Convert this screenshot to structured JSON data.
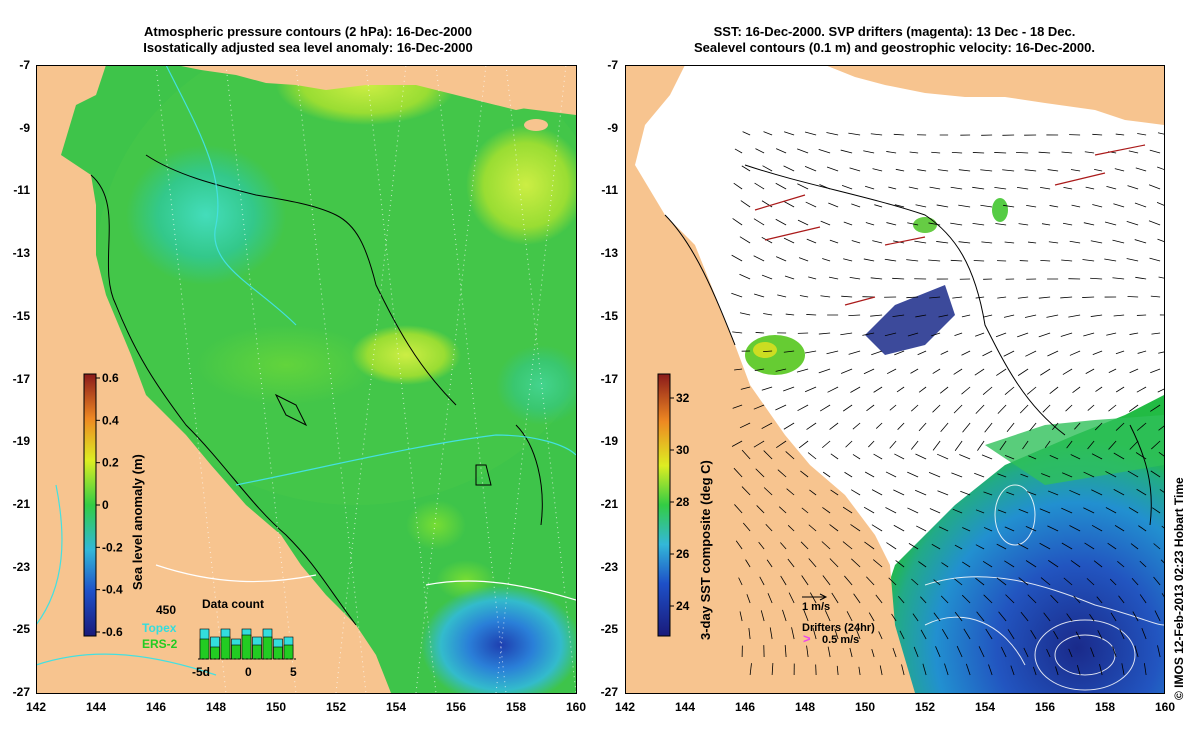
{
  "left_panel": {
    "title_line1": "Atmospheric pressure contours (2 hPa): 16-Dec-2000",
    "title_line2": "Isostatically adjusted sea level anomaly: 16-Dec-2000",
    "colorbar": {
      "label": "Sea level anomaly (m)",
      "ticks": [
        "0.6",
        "0.4",
        "0.2",
        "0",
        "-0.2",
        "-0.4",
        "-0.6"
      ]
    },
    "inset": {
      "title": "Data count",
      "max_label": "450",
      "x_ticks": [
        "-5d",
        "0",
        "5"
      ],
      "series": [
        {
          "name": "Topex",
          "color": "#33dddd"
        },
        {
          "name": "ERS-2",
          "color": "#22cc22"
        }
      ]
    }
  },
  "right_panel": {
    "title_line1": "SST: 16-Dec-2000. SVP drifters (magenta): 13 Dec - 18 Dec.",
    "title_line2": "Sealevel contours (0.1 m) and geostrophic velocity: 16-Dec-2000.",
    "colorbar": {
      "label": "3-day SST composite (deg C)",
      "ticks": [
        "32",
        "30",
        "28",
        "26",
        "24"
      ]
    },
    "velocity_scale": "1 m/s",
    "drifters_label": "Drifters (24hr)",
    "drifters_speed": "0.5 m/s"
  },
  "axes": {
    "lat_ticks": [
      "-7",
      "-9",
      "-11",
      "-13",
      "-15",
      "-17",
      "-19",
      "-21",
      "-23",
      "-25",
      "-27"
    ],
    "lon_ticks": [
      "142",
      "144",
      "146",
      "148",
      "150",
      "152",
      "154",
      "156",
      "158",
      "160"
    ]
  },
  "credit": "© IMOS 12-Feb-2013 02:23 Hobart Time",
  "colors": {
    "land": "#f7c48f",
    "ocean_mid": "#22bb44",
    "sst_missing": "#ffffff"
  }
}
